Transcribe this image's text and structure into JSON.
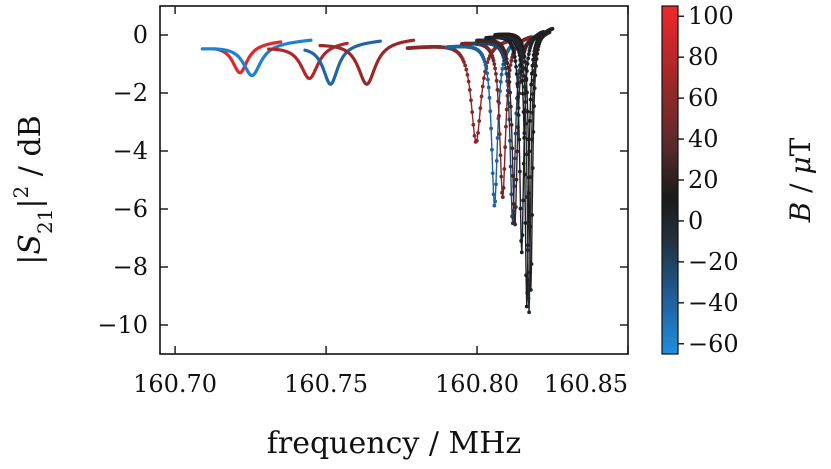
{
  "chart_data": {
    "type": "line",
    "title": "",
    "xlabel": "frequency / MHz",
    "ylabel": "|S21|² / dB",
    "ylabel_parts": {
      "pre": "|",
      "sym": "S",
      "sub": "21",
      "post": "|",
      "sup": "2",
      "unit": " / dB"
    },
    "xlim": [
      160.695,
      160.85
    ],
    "ylim": [
      -11,
      1
    ],
    "x_ticks": [
      160.7,
      160.75,
      160.8,
      160.85
    ],
    "x_tick_labels": [
      "160.70",
      "160.75",
      "160.80",
      "160.85"
    ],
    "y_ticks": [
      0,
      -2,
      -4,
      -6,
      -8,
      -10
    ],
    "y_tick_labels": [
      "0",
      "−2",
      "−4",
      "−6",
      "−8",
      "−10"
    ],
    "colorbar": {
      "label": "B / μT",
      "label_parts": {
        "sym": "B",
        "sep": " / ",
        "mu": "μ",
        "unit": "T"
      },
      "range": [
        -65,
        105
      ],
      "ticks": [
        100,
        80,
        60,
        40,
        20,
        0,
        -20,
        -40,
        -60
      ],
      "tick_labels": [
        "100",
        "80",
        "60",
        "40",
        "20",
        "0",
        "−20",
        "−40",
        "−60"
      ],
      "colors": [
        "#1f8fe0",
        "#1f5c96",
        "#22303d",
        "#1a1a1a",
        "#5a2a2a",
        "#a52828",
        "#f0282e"
      ]
    },
    "series": [
      {
        "name": "resonance at 160.7215 MHz",
        "B": 98,
        "x_start": 160.713,
        "x_end": 160.735,
        "center": 160.7215,
        "width": 0.003,
        "depth": -1.0,
        "baseline": -0.3,
        "slope": 8,
        "markers": false
      },
      {
        "name": "resonance at 160.7255 MHz",
        "B": -58,
        "x_start": 160.709,
        "x_end": 160.745,
        "center": 160.7255,
        "width": 0.0035,
        "depth": -1.1,
        "baseline": -0.3,
        "slope": 8,
        "markers": false
      },
      {
        "name": "resonance at 160.7445 MHz",
        "B": 80,
        "x_start": 160.731,
        "x_end": 160.757,
        "center": 160.7445,
        "width": 0.0035,
        "depth": -1.2,
        "baseline": -0.3,
        "slope": 8,
        "markers": false
      },
      {
        "name": "resonance at 160.7515 MHz",
        "B": -42,
        "x_start": 160.743,
        "x_end": 160.768,
        "center": 160.7515,
        "width": 0.003,
        "depth": -1.4,
        "baseline": -0.3,
        "slope": 8,
        "markers": false
      },
      {
        "name": "resonance at 160.7635 MHz",
        "B": 72,
        "x_start": 160.748,
        "x_end": 160.779,
        "center": 160.7635,
        "width": 0.0035,
        "depth": -1.5,
        "baseline": -0.2,
        "slope": 6,
        "markers": false
      },
      {
        "name": "resonance at 160.7997 MHz",
        "B": 66,
        "x_start": 160.777,
        "x_end": 160.812,
        "center": 160.7997,
        "width": 0.002,
        "depth": -3.5,
        "baseline": -0.2,
        "slope": 10,
        "markers": true
      },
      {
        "name": "resonance at 160.8058 MHz",
        "B": -40,
        "x_start": 160.79,
        "x_end": 160.814,
        "center": 160.8058,
        "width": 0.0012,
        "depth": -5.7,
        "baseline": -0.2,
        "slope": 12,
        "markers": true
      },
      {
        "name": "resonance at 160.8085 MHz",
        "B": 58,
        "x_start": 160.795,
        "x_end": 160.818,
        "center": 160.8085,
        "width": 0.0012,
        "depth": -5.5,
        "baseline": -0.1,
        "slope": 12,
        "markers": true
      },
      {
        "name": "resonance at 160.8118 MHz",
        "B": -22,
        "x_start": 160.799,
        "x_end": 160.82,
        "center": 160.8118,
        "width": 0.001,
        "depth": -6.4,
        "baseline": -0.1,
        "slope": 12,
        "markers": true
      },
      {
        "name": "resonance at 160.8125 MHz",
        "B": 38,
        "x_start": 160.8,
        "x_end": 160.821,
        "center": 160.8125,
        "width": 0.001,
        "depth": -6.6,
        "baseline": 0.0,
        "slope": 12,
        "markers": true
      },
      {
        "name": "resonance at 160.8148 MHz",
        "B": 8,
        "x_start": 160.803,
        "x_end": 160.822,
        "center": 160.8148,
        "width": 0.0008,
        "depth": -7.6,
        "baseline": 0.1,
        "slope": 14,
        "markers": true
      },
      {
        "name": "resonance at 160.8165 MHz",
        "B": 18,
        "x_start": 160.804,
        "x_end": 160.823,
        "center": 160.8165,
        "width": 0.0007,
        "depth": -9.5,
        "baseline": 0.1,
        "slope": 14,
        "markers": true
      },
      {
        "name": "resonance at 160.8172 MHz",
        "B": 0,
        "x_start": 160.805,
        "x_end": 160.824,
        "center": 160.8172,
        "width": 0.0007,
        "depth": -9.7,
        "baseline": 0.1,
        "slope": 14,
        "markers": true
      },
      {
        "name": "resonance at 160.8178 MHz",
        "B": 26,
        "x_start": 160.806,
        "x_end": 160.825,
        "center": 160.8178,
        "width": 0.0007,
        "depth": -9.0,
        "baseline": 0.2,
        "slope": 14,
        "markers": true
      }
    ]
  }
}
